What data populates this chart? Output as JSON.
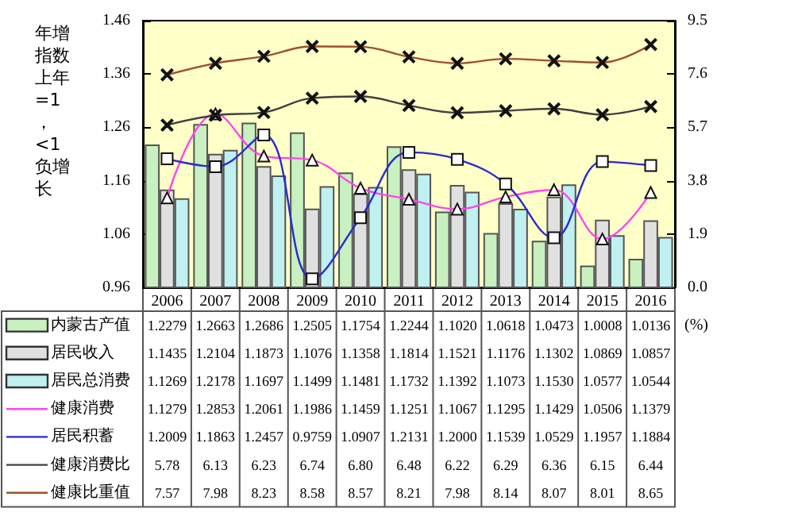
{
  "chart_data": {
    "type": "bar",
    "ylabel": "年增指数上年=1，<1负增长",
    "y2label": "(%)",
    "categories": [
      "2006",
      "2007",
      "2008",
      "2009",
      "2010",
      "2011",
      "2012",
      "2013",
      "2014",
      "2015",
      "2016"
    ],
    "ylim": [
      0.96,
      1.46
    ],
    "yticks": [
      0.96,
      1.06,
      1.16,
      1.26,
      1.36,
      1.46
    ],
    "y2lim": [
      0,
      9.5
    ],
    "y2ticks": [
      {
        "value": 0,
        "label": "0.0"
      },
      1.9,
      3.8,
      5.7,
      7.6,
      9.5
    ],
    "legend": "bottom",
    "grid": false,
    "line_style": "solid",
    "series": [
      {
        "name": "内蒙古产值",
        "color": "#c8f0c0",
        "values": [
          1.2279,
          1.2663,
          1.2686,
          1.2505,
          1.1754,
          1.2244,
          1.102,
          1.0618,
          1.0473,
          1.0008,
          1.0136
        ],
        "value_labels": [
          "1.2279",
          "1.2663",
          "1.2686",
          "1.2505",
          "1.1754",
          "1.2244",
          "1.1020",
          "1.0618",
          "1.0473",
          "1.0008",
          "1.0136"
        ]
      },
      {
        "name": "居民收入",
        "color": "#e0e0e0",
        "values": [
          1.1435,
          1.2104,
          1.1873,
          1.1076,
          1.1358,
          1.1814,
          1.1521,
          1.1176,
          1.1302,
          1.0869,
          1.0857
        ],
        "value_labels": [
          "1.1435",
          "1.2104",
          "1.1873",
          "1.1076",
          "1.1358",
          "1.1814",
          "1.1521",
          "1.1176",
          "1.1302",
          "1.0869",
          "1.0857"
        ]
      },
      {
        "name": "居民总消费",
        "color": "#c0f0f0",
        "values": [
          1.1269,
          1.2178,
          1.1697,
          1.1499,
          1.1481,
          1.1732,
          1.1392,
          1.1073,
          1.153,
          1.0577,
          1.0544
        ],
        "value_labels": [
          "1.1269",
          "1.2178",
          "1.1697",
          "1.1499",
          "1.1481",
          "1.1732",
          "1.1392",
          "1.1073",
          "1.1530",
          "1.0577",
          "1.0544"
        ]
      },
      {
        "name": "健康消费",
        "type": "line",
        "color": "#ff44ee",
        "marker": "triangle",
        "values": [
          1.1279,
          1.2853,
          1.2061,
          1.1986,
          1.1459,
          1.1251,
          1.1067,
          1.1295,
          1.1429,
          1.0506,
          1.1379
        ],
        "value_labels": [
          "1.1279",
          "1.2853",
          "1.2061",
          "1.1986",
          "1.1459",
          "1.1251",
          "1.1067",
          "1.1295",
          "1.1429",
          "1.0506",
          "1.1379"
        ]
      },
      {
        "name": "居民积蓄",
        "type": "line",
        "color": "#2a2ad0",
        "marker": "square",
        "values": [
          1.2009,
          1.1863,
          1.2457,
          0.9759,
          1.0907,
          1.2131,
          1.2,
          1.1539,
          1.0529,
          1.1957,
          1.1884
        ],
        "value_labels": [
          "1.2009",
          "1.1863",
          "1.2457",
          "0.9759",
          "1.0907",
          "1.2131",
          "1.2000",
          "1.1539",
          "1.0529",
          "1.1957",
          "1.1884"
        ]
      },
      {
        "name": "健康消费比",
        "type": "line",
        "axis": "y2",
        "color": "#404040",
        "marker": "cross",
        "values": [
          5.78,
          6.13,
          6.23,
          6.74,
          6.8,
          6.48,
          6.22,
          6.29,
          6.36,
          6.15,
          6.44
        ],
        "value_labels": [
          "5.78",
          "6.13",
          "6.23",
          "6.74",
          "6.80",
          "6.48",
          "6.22",
          "6.29",
          "6.36",
          "6.15",
          "6.44"
        ]
      },
      {
        "name": "健康比重值",
        "type": "line",
        "axis": "y2",
        "color": "#a0502a",
        "marker": "cross",
        "values": [
          7.57,
          7.98,
          8.23,
          8.58,
          8.57,
          8.21,
          7.98,
          8.14,
          8.07,
          8.01,
          8.65
        ],
        "value_labels": [
          "7.57",
          "7.98",
          "8.23",
          "8.58",
          "8.57",
          "8.21",
          "7.98",
          "8.14",
          "8.07",
          "8.01",
          "8.65"
        ]
      }
    ]
  }
}
